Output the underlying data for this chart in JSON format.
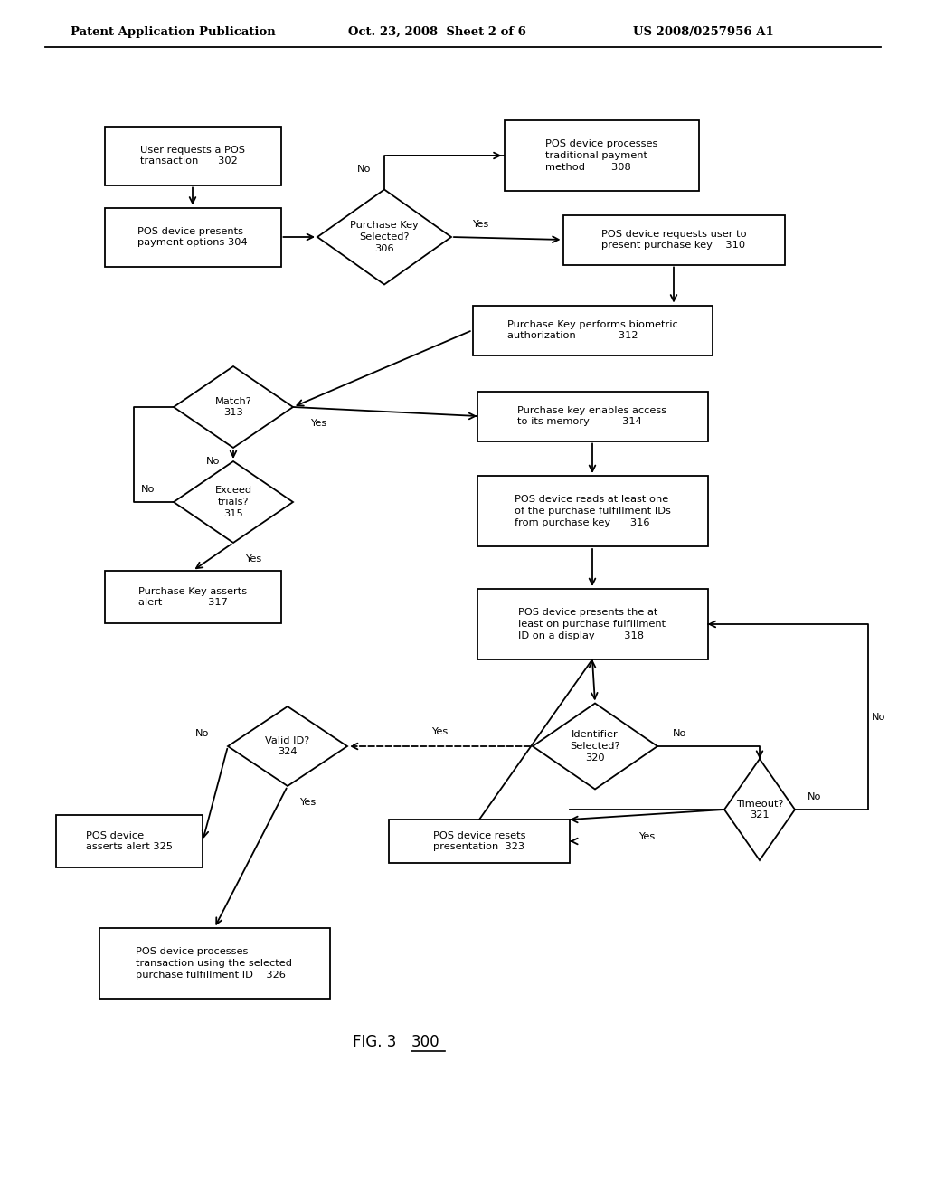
{
  "bg": "#ffffff",
  "header_left": "Patent Application Publication",
  "header_mid": "Oct. 23, 2008  Sheet 2 of 6",
  "header_right": "US 2008/0257956 A1",
  "fig_label": "FIG. 3",
  "fig_num": "300"
}
